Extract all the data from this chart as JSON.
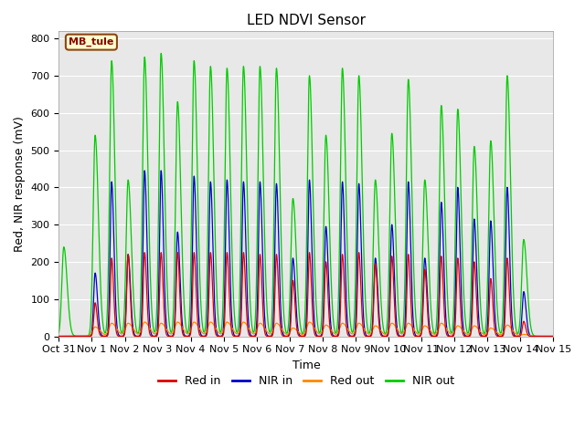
{
  "title": "LED NDVI Sensor",
  "xlabel": "Time",
  "ylabel": "Red, NIR response (mV)",
  "ylim": [
    0,
    820
  ],
  "background_color": "#e8e8e8",
  "annotation_text": "MB_tule",
  "annotation_facecolor": "#ffffcc",
  "annotation_edgecolor": "#8b4513",
  "annotation_textcolor": "#8b0000",
  "colors": {
    "red_in": "#dd0000",
    "nir_in": "#0000cc",
    "red_out": "#ff8800",
    "nir_out": "#00cc00"
  },
  "legend_labels": [
    "Red in",
    "NIR in",
    "Red out",
    "NIR out"
  ],
  "xtick_labels": [
    "Oct 31",
    "Nov 1",
    "Nov 2",
    "Nov 3",
    "Nov 4",
    "Nov 5",
    "Nov 6",
    "Nov 7",
    "Nov 8",
    "Nov 9",
    "Nov 10",
    "Nov 11",
    "Nov 12",
    "Nov 13",
    "Nov 14",
    "Nov 15"
  ],
  "spike_centers": [
    0.15,
    1.1,
    1.6,
    2.1,
    2.6,
    3.1,
    3.6,
    4.1,
    4.6,
    5.1,
    5.6,
    6.1,
    6.6,
    7.1,
    7.6,
    8.1,
    8.6,
    9.1,
    9.6,
    10.1,
    10.6,
    11.1,
    11.6,
    12.1,
    12.6,
    13.1,
    13.6,
    14.1
  ],
  "nir_out_peaks": [
    240,
    540,
    740,
    420,
    750,
    760,
    630,
    740,
    725,
    720,
    725,
    725,
    720,
    370,
    700,
    540,
    720,
    700,
    420,
    545,
    690,
    420,
    620,
    610,
    510,
    525,
    700,
    260
  ],
  "nir_in_peaks": [
    0,
    170,
    415,
    220,
    445,
    445,
    280,
    430,
    415,
    420,
    415,
    415,
    410,
    210,
    420,
    295,
    415,
    410,
    210,
    300,
    415,
    210,
    360,
    400,
    315,
    310,
    400,
    120
  ],
  "red_in_peaks": [
    0,
    90,
    210,
    220,
    225,
    225,
    225,
    225,
    225,
    225,
    225,
    220,
    220,
    150,
    225,
    200,
    220,
    225,
    195,
    215,
    220,
    180,
    215,
    210,
    200,
    155,
    210,
    40
  ],
  "red_out_peaks": [
    0,
    25,
    35,
    35,
    38,
    35,
    38,
    38,
    38,
    38,
    38,
    35,
    35,
    22,
    38,
    30,
    35,
    35,
    28,
    35,
    35,
    28,
    35,
    28,
    28,
    22,
    30,
    5
  ]
}
